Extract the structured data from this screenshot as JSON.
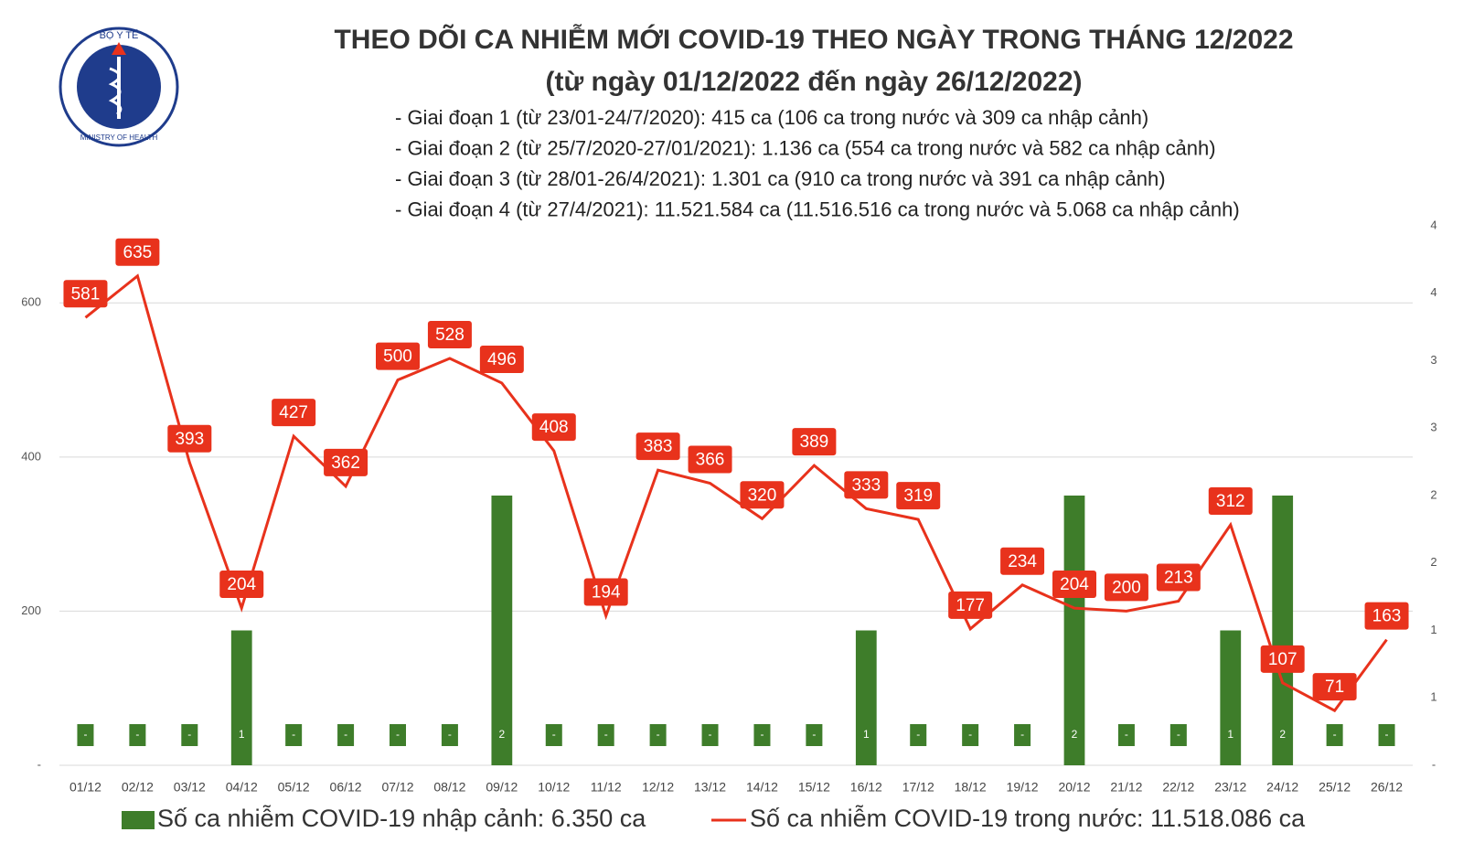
{
  "logo": {
    "top": "BỘ Y TẾ",
    "bottom": "MINISTRY OF HEALTH"
  },
  "chart_data": {
    "type": "bar-line",
    "title": "THEO DÕI CA NHIỄM MỚI COVID-19 THEO NGÀY TRONG THÁNG 12/2022",
    "subtitle": "(từ ngày 01/12/2022 đến ngày 26/12/2022)",
    "notes": [
      "- Giai đoạn 1 (từ 23/01-24/7/2020): 415 ca (106 ca trong nước và 309 ca nhập cảnh)",
      "- Giai đoạn 2 (từ 25/7/2020-27/01/2021): 1.136 ca (554 ca trong nước và 582 ca nhập cảnh)",
      "- Giai đoạn 3 (từ 28/01-26/4/2021): 1.301 ca (910 ca trong nước và 391 ca nhập cảnh)",
      "- Giai đoạn 4 (từ 27/4/2021): 11.521.584 ca (11.516.516 ca trong nước và 5.068 ca nhập cảnh)"
    ],
    "categories": [
      "01/12",
      "02/12",
      "03/12",
      "04/12",
      "05/12",
      "06/12",
      "07/12",
      "08/12",
      "09/12",
      "10/12",
      "11/12",
      "12/12",
      "13/12",
      "14/12",
      "15/12",
      "16/12",
      "17/12",
      "18/12",
      "19/12",
      "20/12",
      "21/12",
      "22/12",
      "23/12",
      "24/12",
      "25/12",
      "26/12"
    ],
    "series": [
      {
        "name": "Số ca nhiễm COVID-19 nhập cảnh: 6.350 ca",
        "type": "bar",
        "axis": "y2",
        "color": "#3e7d2a",
        "values": [
          0,
          0,
          0,
          1,
          0,
          0,
          0,
          0,
          2,
          0,
          0,
          0,
          0,
          0,
          0,
          1,
          0,
          0,
          0,
          2,
          0,
          0,
          1,
          2,
          0,
          0
        ],
        "value_labels": [
          "-",
          "-",
          "-",
          "1",
          "-",
          "-",
          "-",
          "-",
          "2",
          "-",
          "-",
          "-",
          "-",
          "-",
          "-",
          "1",
          "-",
          "-",
          "-",
          "2",
          "-",
          "-",
          "1",
          "2",
          "-",
          "-"
        ]
      },
      {
        "name": "Số ca nhiễm COVID-19 trong nước: 11.518.086 ca",
        "type": "line",
        "color": "#e8321c",
        "values": [
          581,
          635,
          393,
          204,
          427,
          362,
          500,
          528,
          496,
          408,
          194,
          383,
          366,
          320,
          389,
          333,
          319,
          177,
          234,
          204,
          200,
          213,
          312,
          107,
          71,
          163
        ]
      }
    ],
    "ylim": [
      0,
      700
    ],
    "yticks": [
      {
        "value": 0,
        "label": "-"
      },
      200,
      400,
      600
    ],
    "y2lim": [
      0,
      4
    ],
    "y2ticks": [
      {
        "value": 0,
        "label": "-"
      },
      {
        "value": 0.5,
        "label": "1"
      },
      1,
      {
        "value": 1.5,
        "label": "2"
      },
      2,
      {
        "value": 2.5,
        "label": "3"
      },
      3,
      {
        "value": 3.5,
        "label": "4"
      },
      4
    ],
    "grid": true
  }
}
